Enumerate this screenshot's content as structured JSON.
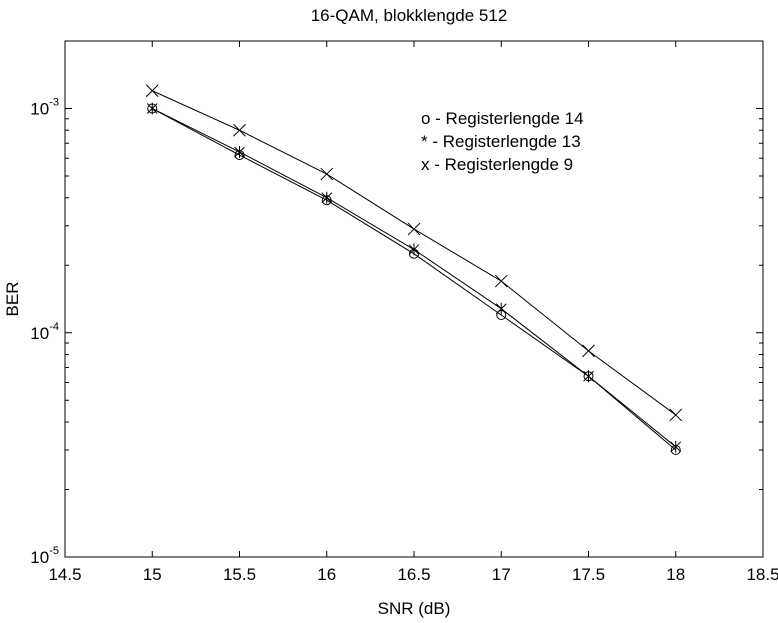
{
  "chart_data": {
    "type": "line",
    "title": "16-QAM, blokklengde 512",
    "xlabel": "SNR (dB)",
    "ylabel": "BER",
    "xlim": [
      14.5,
      18.5
    ],
    "ylim": [
      1e-05,
      0.002
    ],
    "yscale": "log",
    "grid": false,
    "legend_placement": "top-right",
    "x_ticks": [
      14.5,
      15,
      15.5,
      16,
      16.5,
      17,
      17.5,
      18,
      18.5
    ],
    "x_tick_labels": [
      "14.5",
      "15",
      "15.5",
      "16",
      "16.5",
      "17",
      "17.5",
      "18",
      "18.5"
    ],
    "y_ticks": [
      {
        "value": 0.001,
        "base": "10",
        "exp": "-3"
      },
      {
        "value": 0.0001,
        "base": "10",
        "exp": "-4"
      },
      {
        "value": 1e-05,
        "base": "10",
        "exp": "-5"
      }
    ],
    "x": [
      15,
      15.5,
      16,
      16.5,
      17,
      17.5,
      18
    ],
    "series": [
      {
        "name": "Registerlengde 14",
        "marker": "o",
        "legend_label": "o - Registerlengde 14",
        "values": [
          0.001,
          0.00062,
          0.00039,
          0.000225,
          0.00012,
          6.4e-05,
          3e-05
        ]
      },
      {
        "name": "Registerlengde 13",
        "marker": "*",
        "legend_label": "* - Registerlengde 13",
        "values": [
          0.001,
          0.00064,
          0.0004,
          0.000235,
          0.000128,
          6.4e-05,
          3.1e-05
        ]
      },
      {
        "name": "Registerlengde 9",
        "marker": "x",
        "legend_label": "x - Registerlengde 9",
        "values": [
          0.0012,
          0.0008,
          0.00051,
          0.00029,
          0.00017,
          8.3e-05,
          4.3e-05
        ]
      }
    ]
  }
}
